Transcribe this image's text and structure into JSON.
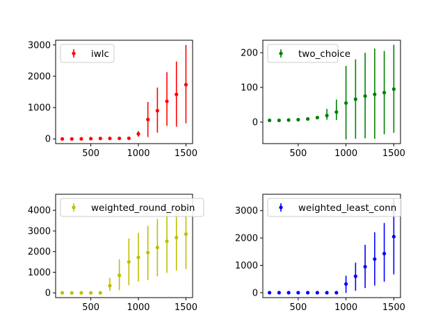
{
  "chart_data": [
    {
      "type": "scatter",
      "errorbars": true,
      "legend_position": "upper-left",
      "grid": false,
      "color": "#ff0000",
      "series": [
        {
          "name": "iwlc"
        }
      ],
      "x": [
        200,
        300,
        400,
        500,
        600,
        700,
        800,
        900,
        1000,
        1100,
        1200,
        1300,
        1400,
        1500
      ],
      "y": [
        0,
        0,
        2,
        8,
        14,
        16,
        18,
        20,
        160,
        620,
        900,
        1200,
        1420,
        1730
      ],
      "yerr_low": [
        0,
        0,
        0,
        0,
        0,
        0,
        0,
        0,
        90,
        560,
        700,
        780,
        1030,
        1230
      ],
      "yerr_high": [
        0,
        0,
        0,
        0,
        0,
        0,
        0,
        0,
        90,
        560,
        740,
        930,
        1050,
        1270
      ],
      "xticks": [
        "500",
        "1000",
        "1500"
      ],
      "yticks": [
        "0",
        "1000",
        "2000",
        "3000"
      ],
      "xlim": [
        130,
        1570
      ],
      "ylim": [
        -150,
        3150
      ]
    },
    {
      "type": "scatter",
      "errorbars": true,
      "legend_position": "upper-left",
      "grid": false,
      "color": "#008000",
      "series": [
        {
          "name": "two_choice"
        }
      ],
      "x": [
        200,
        300,
        400,
        500,
        600,
        700,
        800,
        900,
        1000,
        1100,
        1200,
        1300,
        1400,
        1500
      ],
      "y": [
        5,
        5,
        6,
        7,
        9,
        13,
        19,
        29,
        55,
        66,
        75,
        80,
        85,
        95
      ],
      "yerr_low": [
        0,
        0,
        0,
        0,
        0,
        5,
        12,
        23,
        105,
        114,
        122,
        128,
        120,
        126
      ],
      "yerr_high": [
        0,
        0,
        0,
        0,
        0,
        5,
        19,
        36,
        107,
        115,
        125,
        132,
        120,
        128
      ],
      "xticks": [
        "500",
        "1000",
        "1500"
      ],
      "yticks": [
        "0",
        "100",
        "200"
      ],
      "xlim": [
        130,
        1570
      ],
      "ylim": [
        -62,
        236
      ]
    },
    {
      "type": "scatter",
      "errorbars": true,
      "legend_position": "upper-left",
      "grid": false,
      "color": "#bfbf00",
      "series": [
        {
          "name": "weighted_round_robin"
        }
      ],
      "x": [
        200,
        300,
        400,
        500,
        600,
        700,
        800,
        900,
        1000,
        1100,
        1200,
        1300,
        1400,
        1500
      ],
      "y": [
        0,
        0,
        0,
        0,
        0,
        350,
        850,
        1500,
        1720,
        1950,
        2200,
        2500,
        2680,
        2850
      ],
      "yerr_low": [
        0,
        0,
        0,
        0,
        0,
        250,
        720,
        1130,
        1170,
        1330,
        1400,
        1530,
        1600,
        1700
      ],
      "yerr_high": [
        0,
        0,
        0,
        0,
        0,
        380,
        780,
        1140,
        1190,
        1300,
        1380,
        1500,
        1500,
        1500
      ],
      "xticks": [
        "500",
        "1000",
        "1500"
      ],
      "yticks": [
        "0",
        "1000",
        "2000",
        "3000",
        "4000"
      ],
      "xlim": [
        130,
        1570
      ],
      "ylim": [
        -230,
        4780
      ]
    },
    {
      "type": "scatter",
      "errorbars": true,
      "legend_position": "upper-left",
      "grid": false,
      "color": "#0000ff",
      "series": [
        {
          "name": "weighted_least_conn"
        }
      ],
      "x": [
        200,
        300,
        400,
        500,
        600,
        700,
        800,
        900,
        1000,
        1100,
        1200,
        1300,
        1400,
        1500
      ],
      "y": [
        0,
        0,
        0,
        0,
        0,
        0,
        0,
        0,
        320,
        600,
        950,
        1230,
        1430,
        2050
      ],
      "yerr_low": [
        0,
        0,
        0,
        0,
        0,
        0,
        0,
        0,
        330,
        530,
        780,
        970,
        1030,
        1380
      ],
      "yerr_high": [
        0,
        0,
        0,
        0,
        0,
        0,
        0,
        0,
        300,
        500,
        800,
        980,
        1120,
        1380
      ],
      "xticks": [
        "500",
        "1000",
        "1500"
      ],
      "yticks": [
        "0",
        "1000",
        "2000",
        "3000"
      ],
      "xlim": [
        130,
        1570
      ],
      "ylim": [
        -180,
        3600
      ]
    }
  ]
}
